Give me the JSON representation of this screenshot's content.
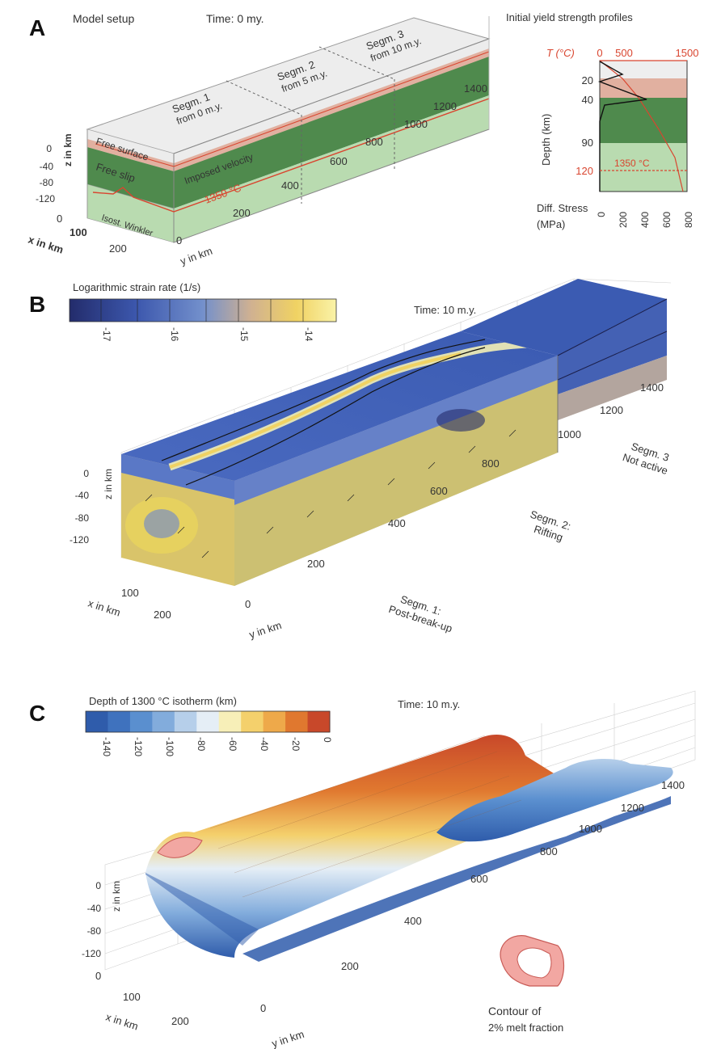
{
  "panelA": {
    "letter": "A",
    "title": "Model setup",
    "time": "Time: 0 my.",
    "segments": [
      {
        "name": "Segm. 1",
        "start": "from 0 m.y."
      },
      {
        "name": "Segm. 2",
        "start": "from 5 m.y."
      },
      {
        "name": "Segm. 3",
        "start": "from 10 m.y."
      }
    ],
    "free_surface": "Free surface",
    "imposed_velocity": "Imposed velocity",
    "free_slip": "Free slip",
    "isotherm": "1350 °C",
    "winkler": "Isost. Winkler",
    "z_label": "z in km",
    "z_ticks": [
      "0",
      "-40",
      "-80",
      "-120"
    ],
    "x_label": "x in km",
    "x_ticks": [
      "0",
      "100",
      "200"
    ],
    "y_label": "y in km",
    "y_ticks": [
      "0",
      "200",
      "400",
      "600",
      "800",
      "1000",
      "1200",
      "1400"
    ],
    "profile": {
      "title": "Initial yield strength profiles",
      "t_label": "T (°C)",
      "t_ticks": [
        "0",
        "500",
        "1500"
      ],
      "depth_label": "Depth (km)",
      "depth_ticks": [
        "20",
        "40",
        "90",
        "120"
      ],
      "isotherm": "1350 °C",
      "stress_label": "Diff. Stress",
      "stress_unit": "(MPa)",
      "stress_ticks": [
        "0",
        "200",
        "400",
        "600",
        "800"
      ],
      "colors": {
        "upper": "#eeeeee",
        "lower_crust": "#e1b0a0",
        "mantle": "#4f8a4d",
        "asthenosphere": "#b9dbb0",
        "temperature": "#d9452f"
      }
    }
  },
  "panelB": {
    "letter": "B",
    "colorbar_title": "Logarithmic strain rate (1/s)",
    "colorbar_ticks": [
      "-17",
      "-16",
      "-15",
      "-14"
    ],
    "colormap": [
      "#232c6b",
      "#2e3f8f",
      "#3c57ad",
      "#5472c2",
      "#7390cc",
      "#a3acc8",
      "#d8b98a",
      "#f0d263",
      "#faf3a8"
    ],
    "time": "Time: 10 m.y.",
    "z_label": "z in km",
    "z_ticks": [
      "0",
      "-40",
      "-80",
      "-120"
    ],
    "x_label": "x in km",
    "x_ticks": [
      "100",
      "200"
    ],
    "y_label": "y in km",
    "y_ticks": [
      "0",
      "200",
      "400",
      "600",
      "800",
      "1000",
      "1200",
      "1400"
    ],
    "segments": [
      {
        "name": "Segm. 1:",
        "state": "Post-break-up"
      },
      {
        "name": "Segm. 2:",
        "state": "Rifting"
      },
      {
        "name": "Segm. 3",
        "state": "Not active"
      }
    ]
  },
  "panelC": {
    "letter": "C",
    "colorbar_title": "Depth of 1300 °C isotherm (km)",
    "colorbar_ticks": [
      "-140",
      "-120",
      "-100",
      "-80",
      "-60",
      "-40",
      "-20",
      "0"
    ],
    "colormap": [
      "#2f5cab",
      "#3f72be",
      "#5a8fcf",
      "#82acdc",
      "#b6cfea",
      "#e5eef6",
      "#f7efb8",
      "#f4d06c",
      "#eea94a",
      "#e0782f",
      "#c8482a"
    ],
    "time": "Time: 10 m.y.",
    "z_label": "z in km",
    "z_ticks": [
      "0",
      "-40",
      "-80",
      "-120"
    ],
    "x_label": "x in km",
    "x_ticks": [
      "0",
      "100",
      "200"
    ],
    "y_label": "y in km",
    "y_ticks": [
      "0",
      "200",
      "400",
      "600",
      "800",
      "1000",
      "1200",
      "1400"
    ],
    "legend_line1": "Contour of",
    "legend_line2": "2% melt fraction"
  }
}
